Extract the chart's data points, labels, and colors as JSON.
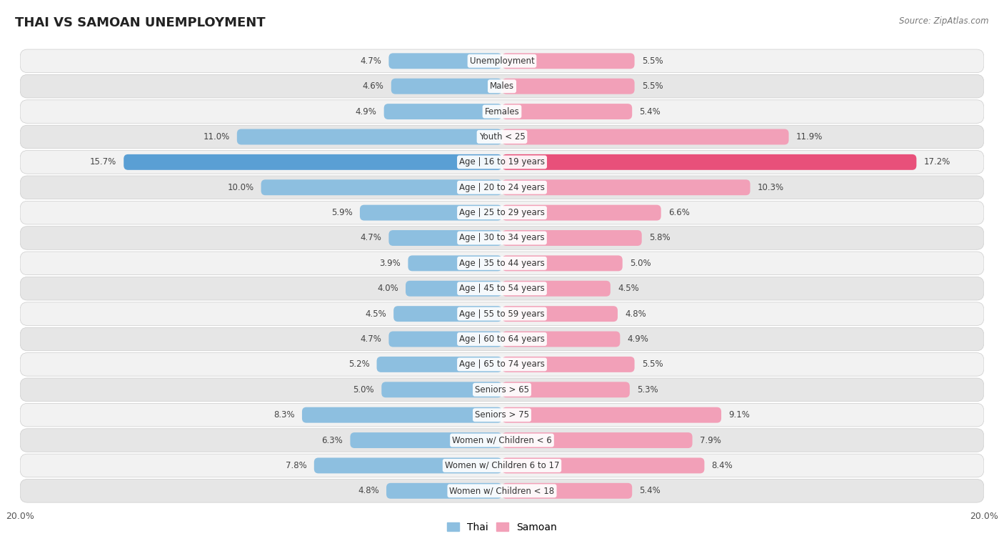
{
  "title": "THAI VS SAMOAN UNEMPLOYMENT",
  "source": "Source: ZipAtlas.com",
  "categories": [
    "Unemployment",
    "Males",
    "Females",
    "Youth < 25",
    "Age | 16 to 19 years",
    "Age | 20 to 24 years",
    "Age | 25 to 29 years",
    "Age | 30 to 34 years",
    "Age | 35 to 44 years",
    "Age | 45 to 54 years",
    "Age | 55 to 59 years",
    "Age | 60 to 64 years",
    "Age | 65 to 74 years",
    "Seniors > 65",
    "Seniors > 75",
    "Women w/ Children < 6",
    "Women w/ Children 6 to 17",
    "Women w/ Children < 18"
  ],
  "thai_values": [
    4.7,
    4.6,
    4.9,
    11.0,
    15.7,
    10.0,
    5.9,
    4.7,
    3.9,
    4.0,
    4.5,
    4.7,
    5.2,
    5.0,
    8.3,
    6.3,
    7.8,
    4.8
  ],
  "samoan_values": [
    5.5,
    5.5,
    5.4,
    11.9,
    17.2,
    10.3,
    6.6,
    5.8,
    5.0,
    4.5,
    4.8,
    4.9,
    5.5,
    5.3,
    9.1,
    7.9,
    8.4,
    5.4
  ],
  "thai_color": "#8dbfe0",
  "samoan_color": "#f2a0b8",
  "thai_highlight_color": "#5a9fd4",
  "samoan_highlight_color": "#e8507a",
  "row_bg_colors": [
    "#f2f2f2",
    "#e6e6e6"
  ],
  "row_border_color": "#cccccc",
  "xlim": 20.0,
  "bar_height": 0.62,
  "label_fontsize": 8.5,
  "title_fontsize": 13,
  "source_fontsize": 8.5,
  "legend_fontsize": 10,
  "axis_label": "20.0%",
  "legend_thai": "Thai",
  "legend_samoan": "Samoan",
  "value_color": "#444444",
  "category_color": "#333333"
}
